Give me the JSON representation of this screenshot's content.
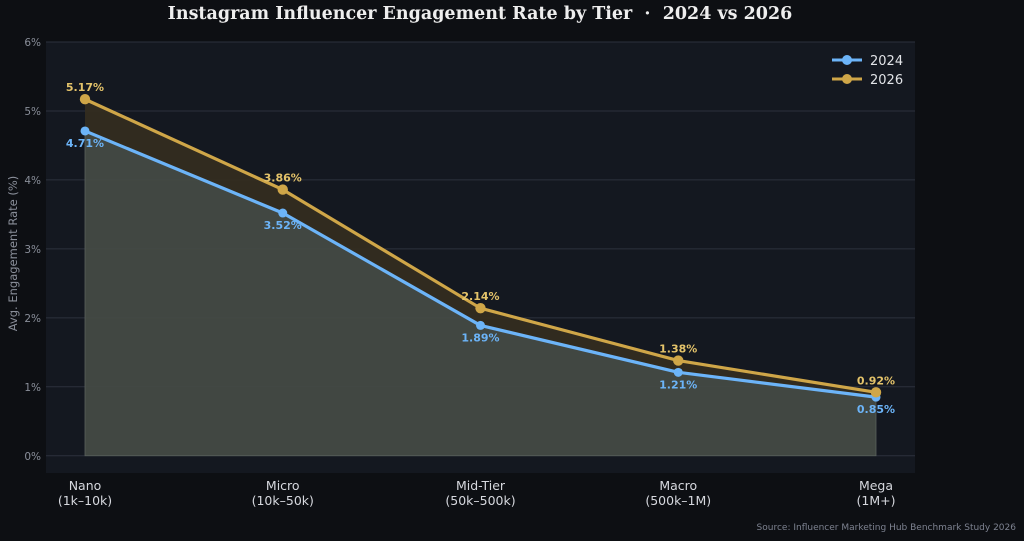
{
  "chart_data": {
    "type": "line",
    "title": "Instagram Influencer Engagement Rate by Tier  ·  2024 vs 2026",
    "ylabel": "Avg. Engagement Rate (%)",
    "xlabel": "",
    "categories": [
      [
        "Nano",
        "(1k–10k)"
      ],
      [
        "Micro",
        "(10k–50k)"
      ],
      [
        "Mid-Tier",
        "(50k–500k)"
      ],
      [
        "Macro",
        "(500k–1M)"
      ],
      [
        "Mega",
        "(1M+)"
      ]
    ],
    "series": [
      {
        "name": "2024",
        "values": [
          4.71,
          3.52,
          1.89,
          1.21,
          0.85
        ],
        "labels": [
          "4.71%",
          "3.52%",
          "1.89%",
          "1.21%",
          "0.85%"
        ],
        "color": "#6cb4f8"
      },
      {
        "name": "2026",
        "values": [
          5.17,
          3.86,
          2.14,
          1.38,
          0.92
        ],
        "labels": [
          "5.17%",
          "3.86%",
          "2.14%",
          "1.38%",
          "0.92%"
        ],
        "color": "#cfa648"
      }
    ],
    "ylim": [
      -0.25,
      6
    ],
    "yticks": [
      0,
      1,
      2,
      3,
      4,
      5,
      6
    ],
    "ytick_labels": [
      "0%",
      "1%",
      "2%",
      "3%",
      "4%",
      "5%",
      "6%"
    ],
    "grid": true,
    "legend": "top-right",
    "source": "Source: Influencer Marketing Hub Benchmark Study 2026"
  }
}
